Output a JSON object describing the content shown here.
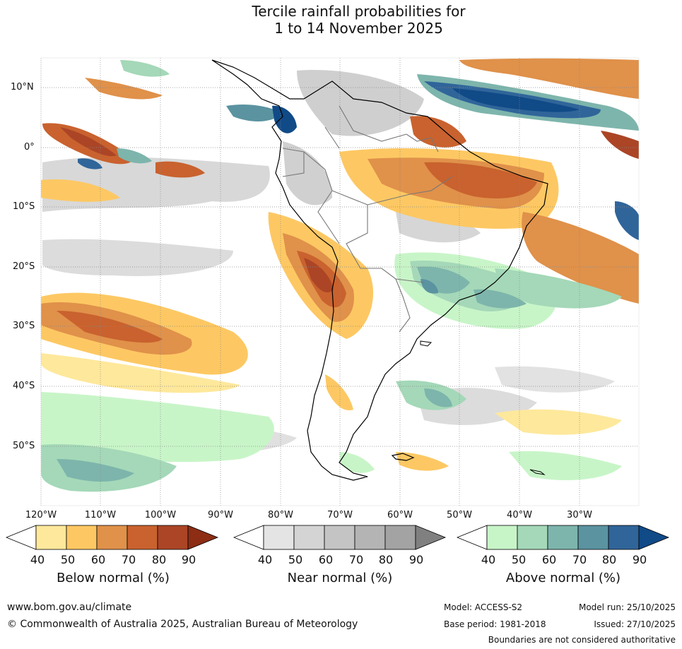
{
  "title_line1": "Tercile rainfall probabilities for",
  "title_line2": "1 to 14 November 2025",
  "lat_labels": [
    "10°N",
    "0°",
    "10°S",
    "20°S",
    "30°S",
    "40°S",
    "50°S"
  ],
  "lon_labels": [
    "120°W",
    "110°W",
    "100°W",
    "90°W",
    "80°W",
    "70°W",
    "60°W",
    "50°W",
    "40°W",
    "30°W"
  ],
  "colorbars": [
    {
      "title": "Below normal (%)",
      "ticks": [
        "40",
        "50",
        "60",
        "70",
        "80",
        "90"
      ],
      "colors": [
        "#ffffff",
        "#fee89b",
        "#fdc863",
        "#e0914a",
        "#c9622e",
        "#ab4526",
        "#8c2d14"
      ]
    },
    {
      "title": "Near normal (%)",
      "ticks": [
        "40",
        "50",
        "60",
        "70",
        "80",
        "90"
      ],
      "colors": [
        "#ffffff",
        "#e4e4e4",
        "#d4d4d4",
        "#c4c4c4",
        "#b4b4b4",
        "#a3a3a3",
        "#808080"
      ]
    },
    {
      "title": "Above normal (%)",
      "ticks": [
        "40",
        "50",
        "60",
        "70",
        "80",
        "90"
      ],
      "colors": [
        "#ffffff",
        "#c8f5c8",
        "#a4d8b8",
        "#7db5ac",
        "#5b93a0",
        "#30659a",
        "#104a87"
      ]
    }
  ],
  "footer": {
    "website": "www.bom.gov.au/climate",
    "copyright": "© Commonwealth of Australia 2025, Australian Bureau of Meteorology",
    "model": "Model: ACCESS-S2",
    "base_period": "Base period: 1981-2018",
    "model_run": "Model run: 25/10/2025",
    "issued": "Issued: 27/10/2025",
    "disclaimer": "Boundaries are not considered authoritative"
  }
}
